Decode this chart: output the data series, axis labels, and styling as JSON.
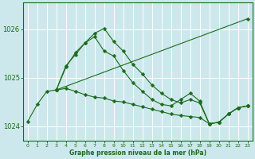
{
  "xlabel": "Graphe pression niveau de la mer (hPa)",
  "x_ticks": [
    0,
    1,
    2,
    3,
    4,
    5,
    6,
    7,
    8,
    9,
    10,
    11,
    12,
    13,
    14,
    15,
    16,
    17,
    18,
    19,
    20,
    21,
    22,
    23
  ],
  "ylim": [
    1023.7,
    1026.55
  ],
  "yticks": [
    1024,
    1025,
    1026
  ],
  "bg_color": "#cce8ec",
  "grid_color": "#ffffff",
  "line_color": "#1a6b1a",
  "series": [
    {
      "x": [
        0,
        1,
        2,
        3,
        4,
        5,
        6,
        7,
        8,
        9,
        10,
        11,
        12,
        13,
        14,
        15,
        16,
        17,
        18,
        19,
        20,
        21,
        22,
        23
      ],
      "y": [
        1024.1,
        1024.45,
        1024.72,
        1024.75,
        1024.78,
        1024.72,
        1024.65,
        1024.6,
        1024.58,
        1024.52,
        1024.5,
        1024.45,
        1024.4,
        1024.35,
        1024.3,
        1024.25,
        1024.22,
        1024.2,
        1024.18,
        1024.05,
        1024.08,
        1024.25,
        1024.38,
        1024.42
      ]
    },
    {
      "x": [
        3,
        4,
        5,
        6,
        7,
        8,
        9,
        10,
        11,
        12,
        13,
        14,
        15,
        16,
        17,
        18,
        19,
        20,
        21,
        22,
        23
      ],
      "y": [
        1024.75,
        1025.25,
        1025.48,
        1025.72,
        1025.85,
        1025.55,
        1025.45,
        1025.15,
        1024.9,
        1024.72,
        1024.55,
        1024.45,
        1024.42,
        1024.55,
        1024.68,
        1024.52,
        1024.05,
        1024.08,
        1024.25,
        1024.38,
        1024.42
      ]
    },
    {
      "x": [
        3,
        4,
        5,
        6,
        7,
        8,
        9,
        10,
        11,
        12,
        13,
        14,
        15,
        16,
        17,
        18,
        19,
        20,
        21,
        22,
        23
      ],
      "y": [
        1024.75,
        1025.22,
        1025.52,
        1025.72,
        1025.92,
        1026.02,
        1025.75,
        1025.55,
        1025.28,
        1025.08,
        1024.85,
        1024.68,
        1024.55,
        1024.48,
        1024.55,
        1024.48,
        1024.05,
        1024.08,
        1024.25,
        1024.38,
        1024.42
      ]
    },
    {
      "x": [
        3,
        23
      ],
      "y": [
        1024.75,
        1026.22
      ]
    }
  ],
  "marker_size": 2.5
}
